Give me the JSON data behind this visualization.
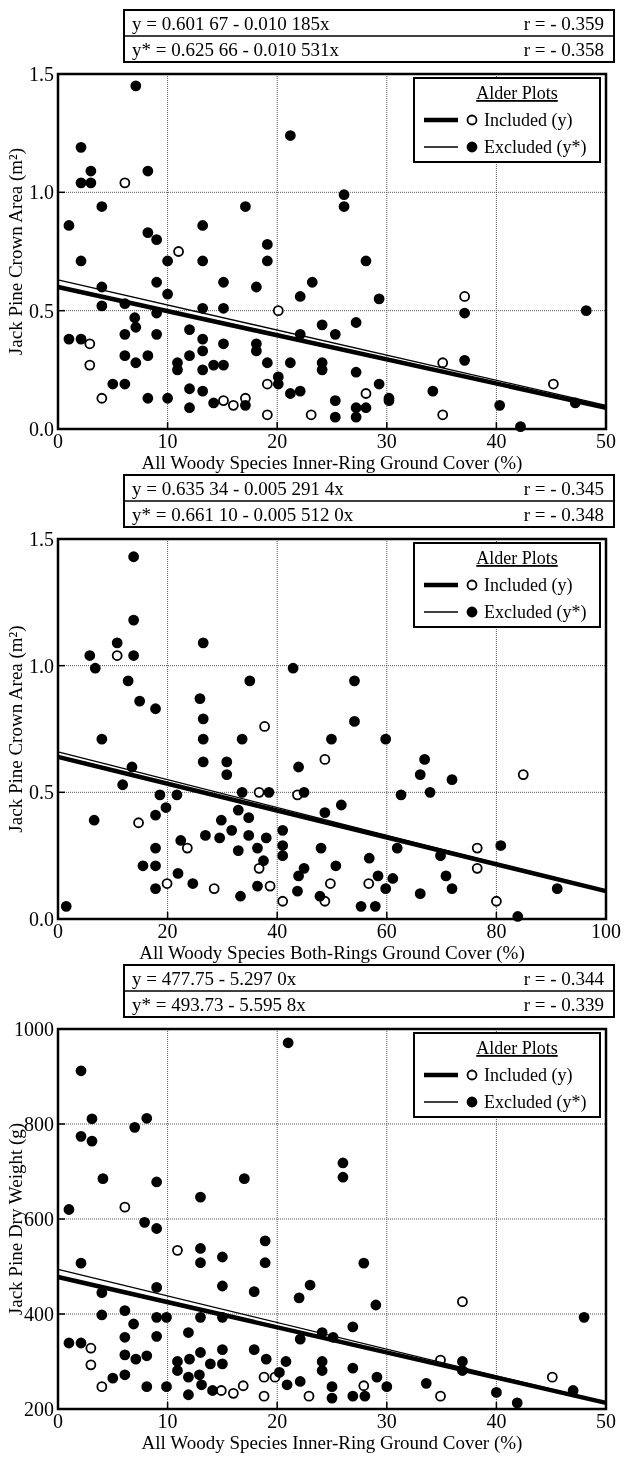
{
  "chart_data": [
    {
      "type": "scatter",
      "xlabel": "All Woody Species Inner-Ring Ground Cover (%)",
      "ylabel": "Jack Pine Crown Area (m²)",
      "legend_title": "Alder Plots",
      "annotations": [
        "y = 0.601 67 - 0.010 185x",
        "r = - 0.359",
        "y* = 0.625 66 - 0.010 531x",
        "r = - 0.358"
      ],
      "xlim": [
        0,
        50
      ],
      "xticks": [
        0,
        10,
        20,
        30,
        40,
        50
      ],
      "ylim": [
        0,
        1.5
      ],
      "yticks": [
        {
          "value": 0,
          "label": "0.0"
        },
        {
          "value": 0.5,
          "label": "0.5"
        },
        {
          "value": 1,
          "label": "1.0"
        },
        {
          "value": 1.5,
          "label": "1.5"
        }
      ],
      "grid": true,
      "legend": "top right",
      "marker": "circle",
      "line_style": "solid",
      "series": [
        {
          "name": "Included (y)",
          "type": "scatter",
          "color": "#ffffff",
          "x": [
            6.1,
            2.9,
            2.9,
            4.0,
            11.0,
            15.1,
            17.1,
            16.0,
            19.1,
            19.1,
            20.1,
            23.1,
            28.1,
            35.1,
            35.1,
            37.1,
            45.2
          ],
          "values": [
            1.04,
            0.27,
            0.36,
            0.13,
            0.75,
            0.12,
            0.13,
            0.1,
            0.19,
            0.06,
            0.5,
            0.06,
            0.15,
            0.28,
            0.06,
            0.56,
            0.19
          ]
        },
        {
          "name": "Excluded (y*)",
          "type": "scatter",
          "color": "#000000",
          "x": [
            7.1,
            2.1,
            2.1,
            3.0,
            3.0,
            8.2,
            21.2,
            26.1,
            26.1,
            1.0,
            4.0,
            17.1,
            2.1,
            8.2,
            9.0,
            13.2,
            10.0,
            13.2,
            19.1,
            19.1,
            28.1,
            4.0,
            9.0,
            15.1,
            18.1,
            23.2,
            22.1,
            29.3,
            10.0,
            4.0,
            6.1,
            9.0,
            13.2,
            15.1,
            37.1,
            48.2,
            7.0,
            7.1,
            6.1,
            9.0,
            12.0,
            13.2,
            13.2,
            12.0,
            15.1,
            18.1,
            18.1,
            19.1,
            22.1,
            24.1,
            25.3,
            27.2,
            1.0,
            2.1,
            6.1,
            7.1,
            8.2,
            10.9,
            10.9,
            13.2,
            14.2,
            15.1,
            21.2,
            24.1,
            24.1,
            27.2,
            37.1,
            5.0,
            6.1,
            20.1,
            20.1,
            12.0,
            13.2,
            22.1,
            21.2,
            29.3,
            34.2,
            8.2,
            10.0,
            14.2,
            12.0,
            17.1,
            25.3,
            27.2,
            28.1,
            27.2,
            25.3,
            30.2,
            30.2,
            40.3,
            42.2,
            47.2
          ],
          "values": [
            1.45,
            1.19,
            1.04,
            1.09,
            1.04,
            1.09,
            1.24,
            0.99,
            0.94,
            0.86,
            0.94,
            0.94,
            0.71,
            0.83,
            0.8,
            0.86,
            0.71,
            0.71,
            0.78,
            0.71,
            0.71,
            0.6,
            0.62,
            0.62,
            0.6,
            0.62,
            0.56,
            0.55,
            0.57,
            0.52,
            0.53,
            0.49,
            0.51,
            0.51,
            0.49,
            0.5,
            0.47,
            0.43,
            0.4,
            0.4,
            0.42,
            0.38,
            0.33,
            0.31,
            0.36,
            0.36,
            0.33,
            0.28,
            0.4,
            0.44,
            0.4,
            0.45,
            0.38,
            0.38,
            0.31,
            0.28,
            0.31,
            0.28,
            0.25,
            0.25,
            0.27,
            0.27,
            0.28,
            0.28,
            0.25,
            0.24,
            0.29,
            0.19,
            0.19,
            0.22,
            0.19,
            0.17,
            0.16,
            0.16,
            0.15,
            0.19,
            0.16,
            0.13,
            0.13,
            0.11,
            0.09,
            0.1,
            0.12,
            0.09,
            0.09,
            0.05,
            0.05,
            0.13,
            0.12,
            0.1,
            0.01,
            0.11
          ]
        },
        {
          "type": "line",
          "marker": "none",
          "color": "#000000",
          "x": [
            0,
            50
          ],
          "values": [
            0.6,
            0.09
          ]
        },
        {
          "type": "line",
          "marker": "none",
          "color": "#000000",
          "x": [
            0,
            50
          ],
          "values": [
            0.63,
            0.1
          ]
        }
      ]
    },
    {
      "type": "scatter",
      "xlabel": "All Woody Species Both-Rings Ground Cover (%)",
      "ylabel": "Jack Pine Crown Area (m²)",
      "legend_title": "Alder Plots",
      "annotations": [
        "y = 0.635 34 - 0.005 291 4x",
        "r = - 0.345",
        "y* = 0.661 10 - 0.005 512 0x",
        "r = - 0.348"
      ],
      "xlim": [
        0,
        100
      ],
      "xticks": [
        0,
        20,
        40,
        60,
        80,
        100
      ],
      "ylim": [
        0,
        1.5
      ],
      "yticks": [
        {
          "value": 0,
          "label": "0.0"
        },
        {
          "value": 0.5,
          "label": "0.5"
        },
        {
          "value": 1,
          "label": "1.0"
        },
        {
          "value": 1.5,
          "label": "1.5"
        }
      ],
      "grid": true,
      "legend": "top right",
      "marker": "circle",
      "line_style": "solid",
      "series": [
        {
          "name": "Included (y)",
          "type": "scatter",
          "color": "#ffffff",
          "x": [
            10.8,
            37.7,
            48.7,
            84.9,
            36.7,
            43.7,
            14.7,
            23.6,
            19.9,
            28.5,
            36.7,
            38.7,
            41.0,
            48.7,
            49.7,
            56.7,
            76.5,
            76.5,
            80.0
          ],
          "values": [
            1.04,
            0.76,
            0.63,
            0.57,
            0.5,
            0.49,
            0.38,
            0.28,
            0.14,
            0.12,
            0.2,
            0.13,
            0.07,
            0.07,
            0.14,
            0.14,
            0.28,
            0.2,
            0.07
          ]
        },
        {
          "name": "Excluded (y*)",
          "type": "scatter",
          "color": "#000000",
          "x": [
            1.5,
            5.8,
            6.8,
            10.8,
            13.8,
            13.8,
            13.8,
            12.8,
            14.9,
            17.8,
            26.5,
            25.9,
            26.5,
            26.5,
            26.5,
            35.0,
            42.9,
            54.1,
            54.1,
            33.6,
            49.9,
            59.8,
            8.0,
            30.8,
            30.8,
            43.9,
            66.9,
            66.1,
            71.9,
            62.6,
            67.9,
            13.5,
            11.8,
            6.6,
            18.6,
            21.7,
            17.8,
            19.7,
            33.6,
            38.5,
            44.9,
            32.9,
            34.8,
            48.7,
            51.7,
            29.8,
            31.7,
            26.9,
            29.5,
            34.8,
            38.0,
            41.0,
            41.0,
            17.8,
            22.4,
            32.9,
            36.4,
            41.0,
            48.0,
            56.8,
            61.9,
            69.8,
            80.8,
            15.5,
            17.8,
            21.9,
            24.6,
            33.3,
            37.5,
            36.4,
            44.9,
            43.9,
            43.7,
            50.7,
            47.8,
            58.4,
            59.8,
            61.1,
            66.1,
            70.8,
            71.9,
            17.8,
            55.3,
            57.9,
            83.9,
            91.1
          ],
          "values": [
            0.05,
            1.04,
            0.99,
            1.09,
            1.43,
            1.18,
            1.04,
            0.94,
            0.86,
            0.83,
            1.09,
            0.87,
            0.79,
            0.71,
            0.62,
            0.94,
            0.99,
            0.94,
            0.78,
            0.71,
            0.71,
            0.71,
            0.71,
            0.62,
            0.57,
            0.6,
            0.63,
            0.57,
            0.55,
            0.49,
            0.5,
            0.6,
            0.53,
            0.39,
            0.49,
            0.49,
            0.41,
            0.44,
            0.5,
            0.5,
            0.5,
            0.43,
            0.4,
            0.42,
            0.45,
            0.39,
            0.35,
            0.33,
            0.32,
            0.33,
            0.32,
            0.35,
            0.29,
            0.28,
            0.31,
            0.27,
            0.28,
            0.25,
            0.28,
            0.24,
            0.28,
            0.25,
            0.29,
            0.21,
            0.21,
            0.18,
            0.14,
            0.09,
            0.23,
            0.13,
            0.2,
            0.17,
            0.11,
            0.21,
            0.09,
            0.17,
            0.12,
            0.16,
            0.1,
            0.17,
            0.12,
            0.12,
            0.05,
            0.05,
            0.01,
            0.12
          ]
        },
        {
          "type": "line",
          "marker": "none",
          "color": "#000000",
          "x": [
            0,
            100
          ],
          "values": [
            0.64,
            0.11
          ]
        },
        {
          "type": "line",
          "marker": "none",
          "color": "#000000",
          "x": [
            0,
            100
          ],
          "values": [
            0.66,
            0.11
          ]
        }
      ]
    },
    {
      "type": "scatter",
      "xlabel": "All Woody Species Inner-Ring Ground Cover (%)",
      "ylabel": "Jack Pine Dry Weight (g)",
      "legend_title": "Alder Plots",
      "annotations": [
        "y = 477.75 - 5.297 0x",
        "r = - 0.344",
        "y* = 493.73 - 5.595 8x",
        "r = - 0.339"
      ],
      "xlim": [
        0,
        50
      ],
      "xticks": [
        0,
        10,
        20,
        30,
        40,
        50
      ],
      "ylim": [
        200,
        1000
      ],
      "yticks": [
        200,
        400,
        600,
        800,
        1000
      ],
      "grid": true,
      "legend": "top right",
      "marker": "circle",
      "line_style": "solid",
      "series": [
        {
          "name": "Included (y)",
          "type": "scatter",
          "color": "#ffffff",
          "x": [
            6.1,
            10.9,
            3.0,
            3.0,
            4.0,
            14.9,
            16.0,
            16.9,
            18.8,
            18.8,
            19.8,
            22.9,
            27.9,
            34.9,
            34.9,
            36.9,
            45.1
          ],
          "values": [
            625,
            534,
            328,
            293,
            247,
            239,
            233,
            249,
            267,
            227,
            267,
            227,
            249,
            303,
            227,
            426,
            267
          ]
        },
        {
          "name": "Excluded (y*)",
          "type": "scatter",
          "color": "#000000",
          "x": [
            21.0,
            2.1,
            2.1,
            3.1,
            3.1,
            7.0,
            8.1,
            1.0,
            4.1,
            9.0,
            13.0,
            17.0,
            26.0,
            26.0,
            7.9,
            9.0,
            2.1,
            13.0,
            13.0,
            15.0,
            18.9,
            18.9,
            27.9,
            15.0,
            17.9,
            23.0,
            22.0,
            9.0,
            29.0,
            48.0,
            4.0,
            4.0,
            6.1,
            9.0,
            9.9,
            13.0,
            15.0,
            11.9,
            6.9,
            6.1,
            9.0,
            1.0,
            2.1,
            6.1,
            7.1,
            8.1,
            13.0,
            15.0,
            17.9,
            19.0,
            10.9,
            10.9,
            12.0,
            13.9,
            15.0,
            20.8,
            22.1,
            24.1,
            25.1,
            26.9,
            24.1,
            24.1,
            26.9,
            36.9,
            36.9,
            6.1,
            5.0,
            8.1,
            9.9,
            11.9,
            11.9,
            12.9,
            13.1,
            14.1,
            20.2,
            20.9,
            22.1,
            25.0,
            25.0,
            26.9,
            28.0,
            29.1,
            30.0,
            33.6,
            40.0,
            41.9,
            47.0
          ],
          "values": [
            971,
            912,
            774,
            764,
            811,
            793,
            812,
            620,
            685,
            678,
            646,
            685,
            718,
            688,
            593,
            580,
            507,
            538,
            508,
            520,
            554,
            508,
            507,
            459,
            447,
            461,
            434,
            456,
            419,
            393,
            445,
            398,
            407,
            393,
            393,
            393,
            393,
            361,
            379,
            351,
            353,
            339,
            339,
            314,
            305,
            312,
            319,
            325,
            325,
            305,
            300,
            281,
            305,
            295,
            295,
            300,
            347,
            361,
            351,
            373,
            300,
            281,
            286,
            300,
            281,
            272,
            265,
            247,
            247,
            267,
            230,
            272,
            251,
            239,
            277,
            251,
            258,
            247,
            223,
            227,
            227,
            267,
            247,
            254,
            235,
            213,
            239
          ]
        },
        {
          "type": "line",
          "marker": "none",
          "color": "#000000",
          "x": [
            0,
            50
          ],
          "values": [
            478,
            213
          ]
        },
        {
          "type": "line",
          "marker": "none",
          "color": "#000000",
          "x": [
            0,
            50
          ],
          "values": [
            494,
            214
          ]
        }
      ]
    }
  ]
}
